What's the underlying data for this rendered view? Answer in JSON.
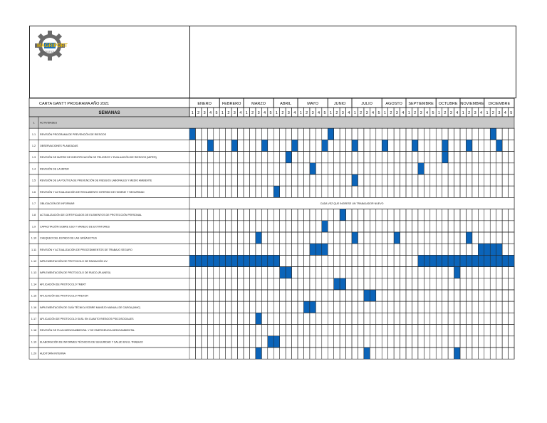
{
  "company": {
    "logo_text": "MAGRIPORT",
    "logo_sub": "LOGÍSTICA"
  },
  "table": {
    "title": "CARTA GANTT PROGRAMA AÑO 2021",
    "week_header": "SEMANAS",
    "colors": {
      "fill": "#0b64b9",
      "header_bg": "#c8c8c8",
      "grid": "#222222"
    },
    "months": [
      {
        "name": "ENERO",
        "weeks": 5
      },
      {
        "name": "FEBRERO",
        "weeks": 4
      },
      {
        "name": "MARZO",
        "weeks": 5
      },
      {
        "name": "ABRIL",
        "weeks": 4
      },
      {
        "name": "MAYO",
        "weeks": 5
      },
      {
        "name": "JUNIO",
        "weeks": 4
      },
      {
        "name": "JULIO",
        "weeks": 5
      },
      {
        "name": "AGOSTO",
        "weeks": 4
      },
      {
        "name": "SEPTIEMBRE",
        "weeks": 5
      },
      {
        "name": "OCTUBRE",
        "weeks": 4
      },
      {
        "name": "NOVIEMBRE",
        "weeks": 4
      },
      {
        "name": "DICIEMBRE",
        "weeks": 5
      }
    ],
    "rows": [
      {
        "num": "1",
        "label": "ACTIVIDADES",
        "header": true,
        "fills": []
      },
      {
        "num": "1.1",
        "label": "REVISIÓN PROGRAMA DE PREVENCIÓN DE RIESGOS",
        "fills": [
          1,
          24,
          51
        ]
      },
      {
        "num": "1.2",
        "label": "OBSERVACIONES PLANEADAS",
        "fills": [
          4,
          8,
          13,
          18,
          23,
          28,
          33,
          38,
          43,
          47,
          52,
          56
        ]
      },
      {
        "num": "1.3",
        "label": "REVISIÓN DE MATRIZ DE IDENTIFICACIÓN DE PELIGROS Y EVALUACIÓN DE RIESGOS (MIPER)",
        "fills": [
          17,
          43
        ]
      },
      {
        "num": "1.4",
        "label": "REVISIÓN DE LA MIPER",
        "fills": [
          21,
          39
        ]
      },
      {
        "num": "1.5",
        "label": "REVISIÓN DE LA POLÍTICA DE PREVENCIÓN DE RIESGOS LABORALES Y MEDIO AMBIENTE",
        "fills": [
          28
        ]
      },
      {
        "num": "1.6",
        "label": "REVISIÓN Y ACTUALIZACIÓN DE REGLAMENTO INTERNO DE HIGIENE Y SEGURIDAD",
        "fills": [
          15
        ]
      },
      {
        "num": "1.7",
        "label": "OBLIGACIÓN DE INFORMAR",
        "merged": "CADA VEZ QUE INGRESE UN TRABAJADOR NUEVO",
        "fills": []
      },
      {
        "num": "1.8",
        "label": "ACTUALIZACIÓN DE CERTIFICADOS DE ELEMENTOS DE PROTECCIÓN PERSONAL",
        "fills": [
          26
        ]
      },
      {
        "num": "1.9",
        "label": "CAPACITACIÓN SOBRE USO Y MANEJO DE EXTINTORES",
        "fills": [
          23
        ]
      },
      {
        "num": "1.10",
        "label": "CHEQUEO DEL ESTADO DE LAS GRÚAS/CTUS",
        "fills": [
          12,
          28,
          35,
          47
        ]
      },
      {
        "num": "1.11",
        "label": "REVISIÓN Y ACTUALIZACIÓN DE PROCEDIMIENTOS DE TRABAJO SEGURO",
        "fills": [
          21,
          22,
          23,
          49,
          50,
          51,
          52
        ]
      },
      {
        "num": "1.12",
        "label": "IMPLEMENTACIÓN DE PROTOCOLO DE RADIACIÓN UV",
        "fills": [
          1,
          2,
          3,
          4,
          5,
          6,
          7,
          8,
          9,
          10,
          11,
          12,
          13,
          14,
          15,
          39,
          40,
          41,
          42,
          43,
          44,
          45,
          46,
          47,
          48,
          49,
          50,
          51,
          52,
          53,
          54,
          55,
          56
        ]
      },
      {
        "num": "1.13",
        "label": "IMPLEMENTACIÓN DE PROTOCOLO DE RUIDO (PLANESI)",
        "fills": [
          16,
          17,
          45
        ]
      },
      {
        "num": "1.14",
        "label": "APLICACIÓN DE PROTOCOLO TMERT",
        "fills": [
          25,
          26
        ]
      },
      {
        "num": "1.15",
        "label": "APLICACIÓN DE PROTOCOLO PREXOR",
        "fills": [
          30,
          31
        ]
      },
      {
        "num": "1.16",
        "label": "IMPLEMENTACIÓN DE GUÍA TÉCNICA SOBRE MANEJO MANUAL DE CARGA (MMC)",
        "fills": [
          20,
          21
        ]
      },
      {
        "num": "1.17",
        "label": "APLICACIÓN DE PROTOCOLO SUSL EN CUANTO RIESGOS PSICOSOCIALES",
        "fills": [
          12
        ]
      },
      {
        "num": "1.18",
        "label": "REVISIÓN DE PLAN MEDIOAMBIENTAL Y DE EMERGENCIA MEDIOAMBIENTAL",
        "fills": []
      },
      {
        "num": "1.19",
        "label": "ELABORACIÓN DE INFORMES TÉCNICOS DE SEGURIDAD Y SALUD EN EL TRABAJO",
        "fills": [
          14,
          15
        ]
      },
      {
        "num": "1.20",
        "label": "AUDITORÍA INTERNA",
        "fills": [
          12,
          30,
          45
        ]
      }
    ]
  }
}
